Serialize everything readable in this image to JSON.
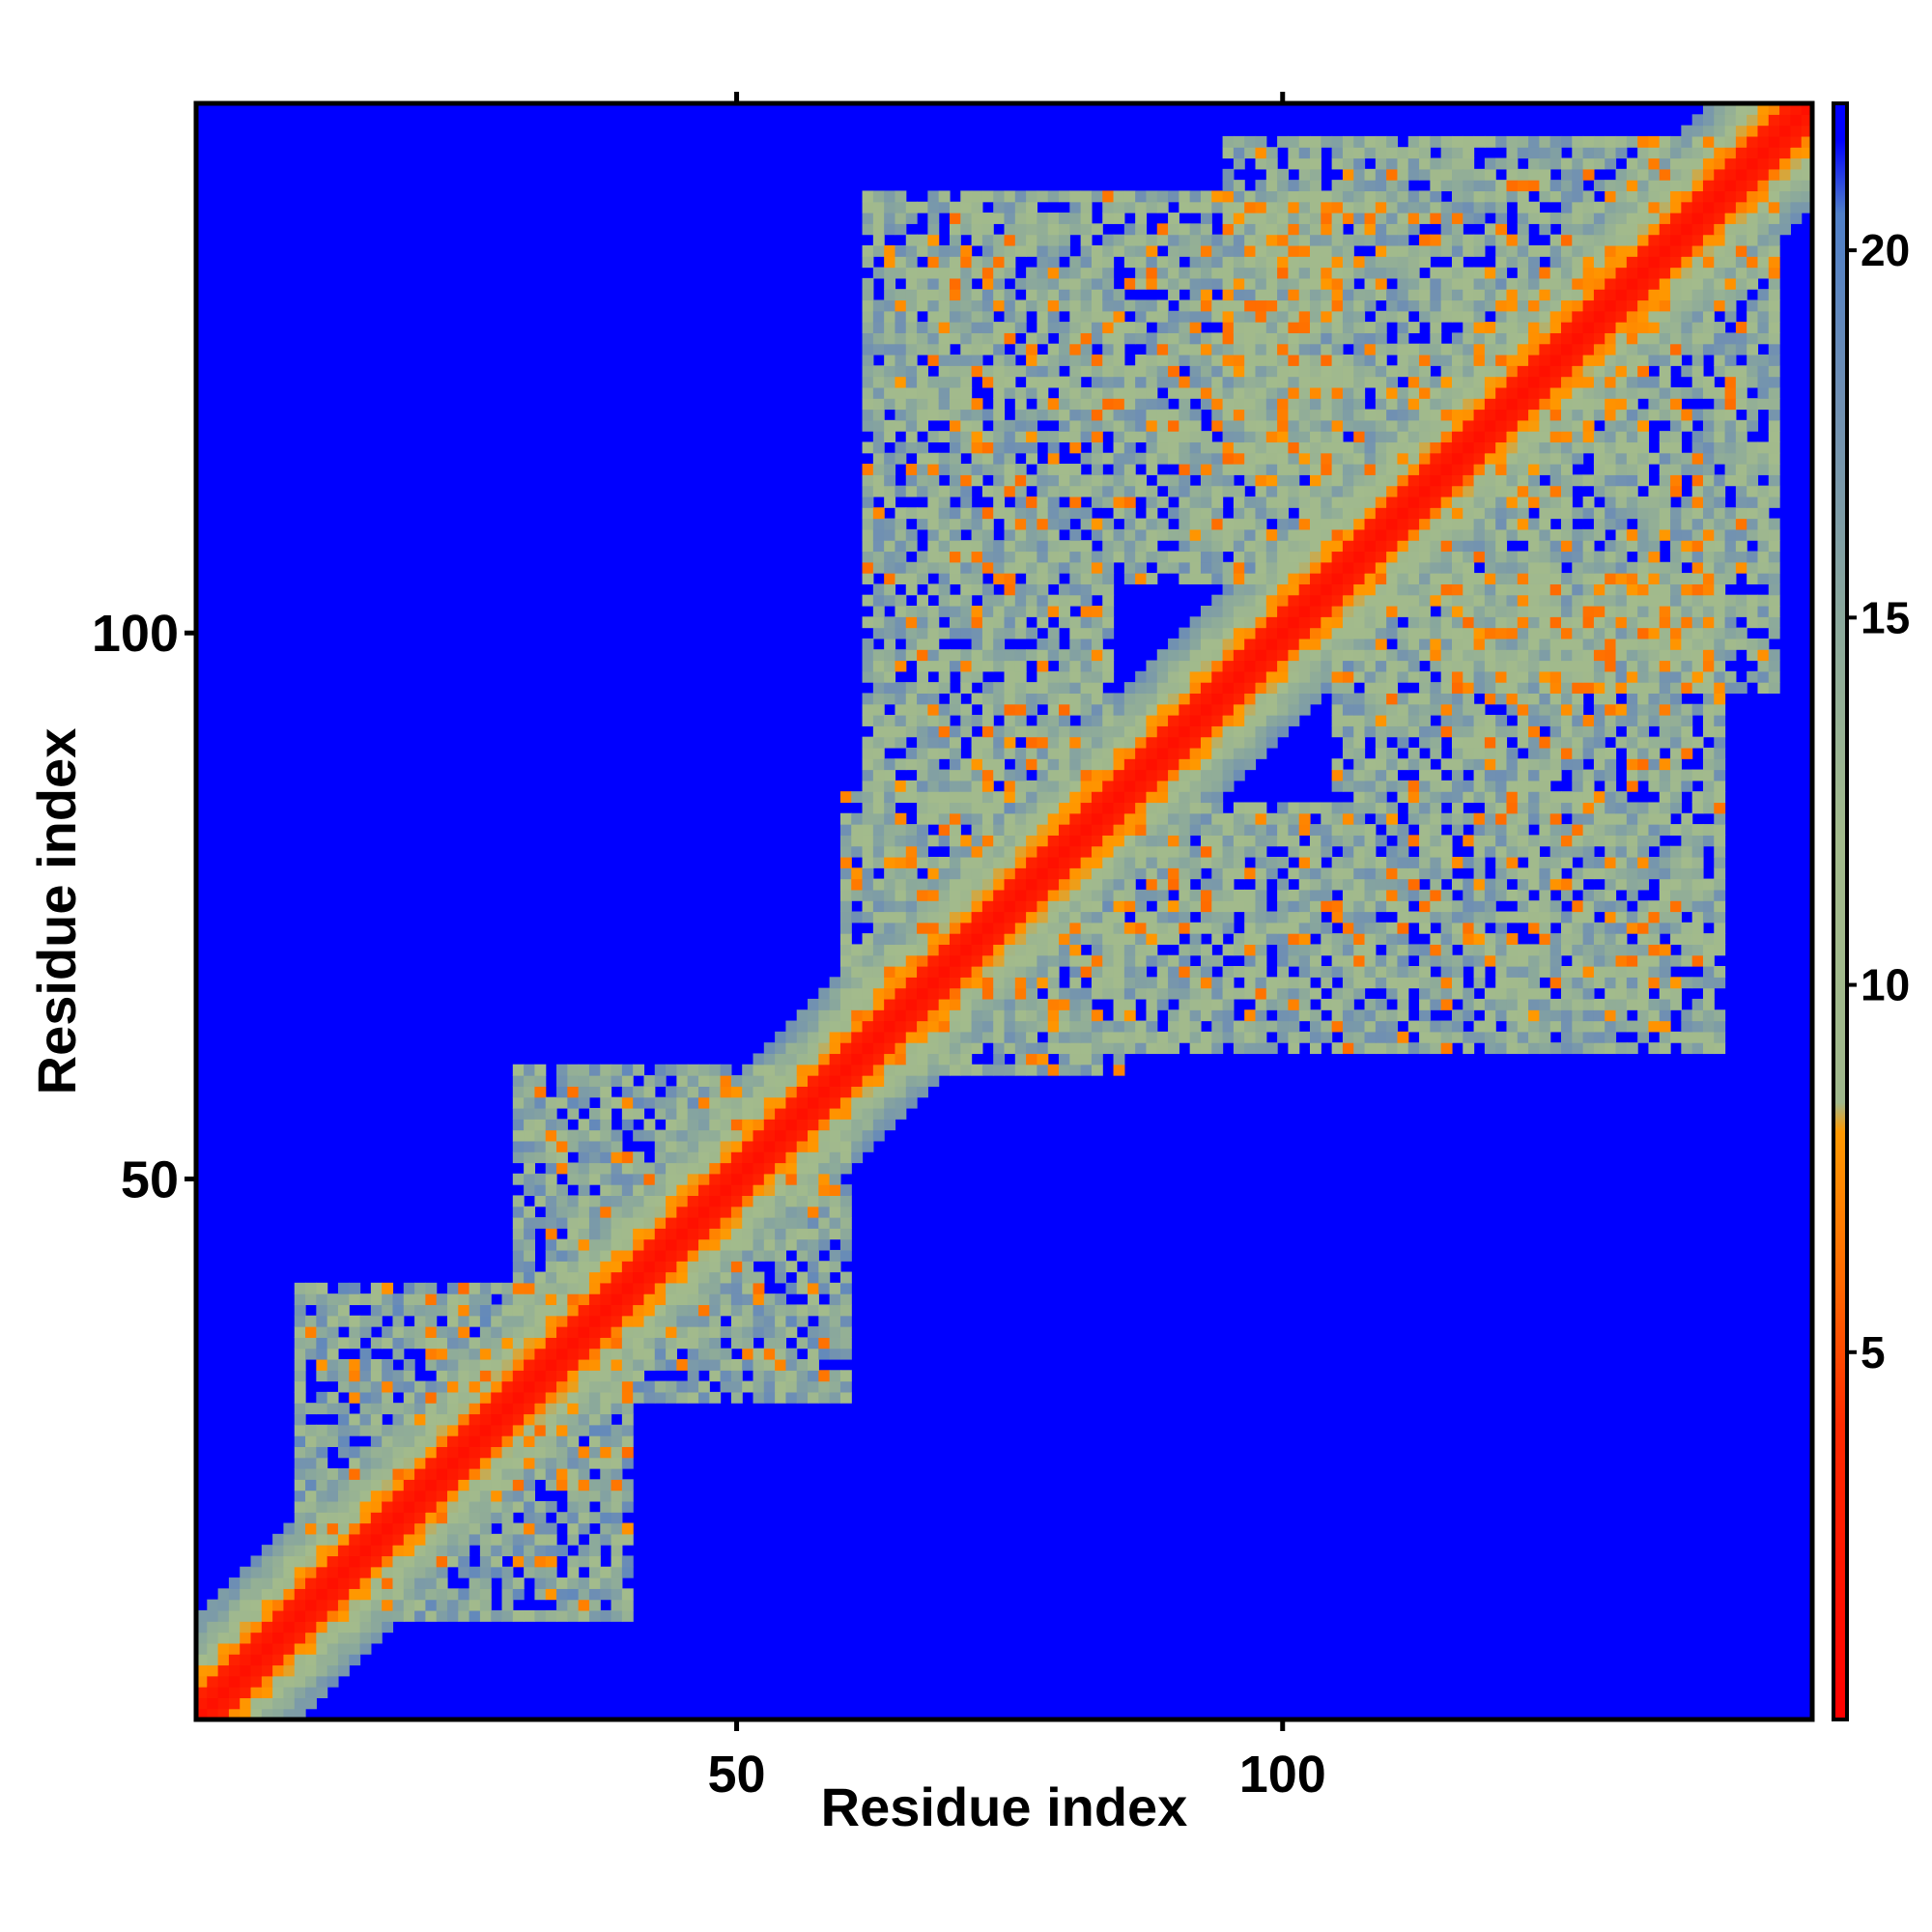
{
  "chart_data": {
    "type": "heatmap",
    "title": "",
    "xlabel": "Residue index",
    "ylabel": "Residue index",
    "n_residues": 148,
    "xlim": [
      1,
      148
    ],
    "ylim": [
      1,
      148
    ],
    "x_ticks": [
      50,
      100
    ],
    "y_ticks": [
      50,
      100
    ],
    "colorbar": {
      "ticks": [
        5,
        10,
        15,
        20
      ],
      "range": [
        0,
        22
      ],
      "stops": [
        {
          "value": 0,
          "color": "#ff0000"
        },
        {
          "value": 4,
          "color": "#ff2a00"
        },
        {
          "value": 6,
          "color": "#ff6a00"
        },
        {
          "value": 8,
          "color": "#ff9900"
        },
        {
          "value": 8.4,
          "color": "#9fb88c"
        },
        {
          "value": 12,
          "color": "#a3bb8c"
        },
        {
          "value": 15,
          "color": "#8aa89c"
        },
        {
          "value": 18,
          "color": "#6f8fb3"
        },
        {
          "value": 20.5,
          "color": "#4f7fc8"
        },
        {
          "value": 21.5,
          "color": "#0000ff"
        },
        {
          "value": 22,
          "color": "#0000ff"
        }
      ]
    },
    "matrix_description": "symmetric residue–residue distance map (Å); values above the contact cutoff render as blue",
    "diagonal_band": {
      "strong_width": 2,
      "medium_width": 4,
      "faint_width": 9
    },
    "contact_regions": [
      {
        "i": [
          62,
          84
        ],
        "j": [
          85,
          140
        ],
        "value": 13
      },
      {
        "i": [
          85,
          105
        ],
        "j": [
          105,
          140
        ],
        "value": 13
      },
      {
        "i": [
          10,
          32
        ],
        "j": [
          14,
          40
        ],
        "value": 14
      },
      {
        "i": [
          30,
          55
        ],
        "j": [
          35,
          60
        ],
        "value": 14
      },
      {
        "i": [
          60,
          75
        ],
        "j": [
          63,
          85
        ],
        "value": 13
      },
      {
        "i": [
          95,
          145
        ],
        "j": [
          115,
          145
        ],
        "value": 13
      },
      {
        "i": [
          105,
          135
        ],
        "j": [
          60,
          95
        ],
        "value": 13
      },
      {
        "i": [
          120,
          142
        ],
        "j": [
          60,
          100
        ],
        "value": 13
      }
    ],
    "colors": {
      "background": "#0000ff",
      "frame": "#000000"
    }
  }
}
